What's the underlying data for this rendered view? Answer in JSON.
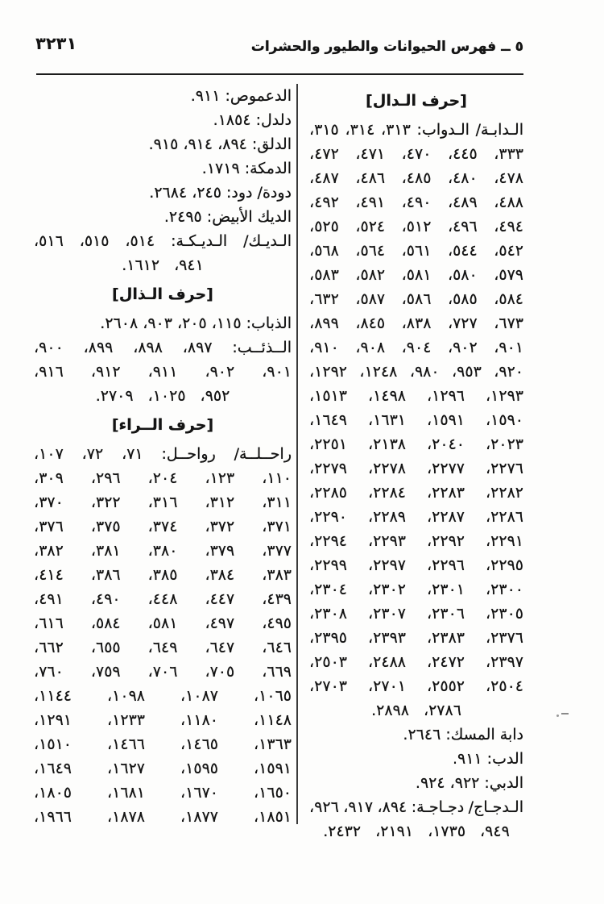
{
  "header": {
    "page_number": "٣٢٣١",
    "title": "٥ ــ فهرس الحيوانات والطيور والحشرات"
  },
  "columns": {
    "right": {
      "section": "حرف الدال",
      "lines": [
        {
          "type": "heading",
          "text": "[حرف الـدال]"
        },
        {
          "type": "justify",
          "tokens": [
            "الـدابـة/",
            "الـدواب:",
            "٣١٣،",
            "٣١٤،",
            "٣١٥،"
          ]
        },
        {
          "type": "justify",
          "tokens": [
            "٣٣٣،",
            "٤٤٥،",
            "٤٧٠،",
            "٤٧١،",
            "٤٧٢،"
          ]
        },
        {
          "type": "justify",
          "tokens": [
            "٤٧٨،",
            "٤٨٠،",
            "٤٨٥،",
            "٤٨٦،",
            "٤٨٧،"
          ]
        },
        {
          "type": "justify",
          "tokens": [
            "٤٨٨،",
            "٤٨٩،",
            "٤٩٠،",
            "٤٩١،",
            "٤٩٢،"
          ]
        },
        {
          "type": "justify",
          "tokens": [
            "٤٩٤،",
            "٤٩٦،",
            "٥١٢،",
            "٥٢٤،",
            "٥٢٥،"
          ]
        },
        {
          "type": "justify",
          "tokens": [
            "٥٤٢،",
            "٥٤٤،",
            "٥٦١،",
            "٥٦٤،",
            "٥٦٨،"
          ]
        },
        {
          "type": "justify",
          "tokens": [
            "٥٧٩،",
            "٥٨٠،",
            "٥٨١،",
            "٥٨٢،",
            "٥٨٣،"
          ]
        },
        {
          "type": "justify",
          "tokens": [
            "٥٨٤،",
            "٥٨٥،",
            "٥٨٦،",
            "٥٨٧،",
            "٦٣٢،"
          ]
        },
        {
          "type": "justify",
          "tokens": [
            "٦٧٣،",
            "٧٢٧،",
            "٨٣٨،",
            "٨٤٥،",
            "٨٩٩،"
          ]
        },
        {
          "type": "justify",
          "tokens": [
            "٩٠١،",
            "٩٠٢،",
            "٩٠٤،",
            "٩٠٨،",
            "٩١٠،"
          ]
        },
        {
          "type": "justify",
          "tokens": [
            "٩٢٠،",
            "٩٥٣،",
            "٩٨٠،",
            "١٢٤٨،",
            "١٢٩٢،"
          ]
        },
        {
          "type": "justify",
          "tokens": [
            "١٢٩٣،",
            "١٢٩٦،",
            "١٤٩٨،",
            "١٥١٣،"
          ]
        },
        {
          "type": "justify",
          "tokens": [
            "١٥٩٠،",
            "١٥٩١،",
            "١٦٣١،",
            "١٦٤٩،"
          ]
        },
        {
          "type": "justify",
          "tokens": [
            "٢٠٢٣،",
            "٢٠٤٠،",
            "٢١٣٨،",
            "٢٢٥١،"
          ]
        },
        {
          "type": "justify",
          "tokens": [
            "٢٢٧٦،",
            "٢٢٧٧،",
            "٢٢٧٨،",
            "٢٢٧٩،"
          ]
        },
        {
          "type": "justify",
          "tokens": [
            "٢٢٨٢،",
            "٢٢٨٣،",
            "٢٢٨٤،",
            "٢٢٨٥،"
          ]
        },
        {
          "type": "justify",
          "tokens": [
            "٢٢٨٦،",
            "٢٢٨٧،",
            "٢٢٨٩،",
            "٢٢٩٠،"
          ]
        },
        {
          "type": "justify",
          "tokens": [
            "٢٢٩١،",
            "٢٢٩٢،",
            "٢٢٩٣،",
            "٢٢٩٤،"
          ]
        },
        {
          "type": "justify",
          "tokens": [
            "٢٢٩٥،",
            "٢٢٩٦،",
            "٢٢٩٧،",
            "٢٢٩٩،"
          ]
        },
        {
          "type": "justify",
          "tokens": [
            "٢٣٠٠،",
            "٢٣٠١،",
            "٢٣٠٢،",
            "٢٣٠٤،"
          ]
        },
        {
          "type": "justify",
          "tokens": [
            "٢٣٠٥،",
            "٢٣٠٦،",
            "٢٣٠٧،",
            "٢٣٠٨،"
          ]
        },
        {
          "type": "justify",
          "tokens": [
            "٢٣٧٦،",
            "٢٣٨٣،",
            "٢٣٩٣،",
            "٢٣٩٥،"
          ]
        },
        {
          "type": "justify",
          "tokens": [
            "٢٣٩٧،",
            "٢٤٧٢،",
            "٢٤٨٨،",
            "٢٥٠٣،"
          ]
        },
        {
          "type": "justify",
          "tokens": [
            "٢٥٠٤،",
            "٢٥٥٢،",
            "٢٧٠١،",
            "٢٧٠٣،"
          ]
        },
        {
          "type": "center",
          "tokens": [
            "٢٧٨٦،",
            "٢٨٩٨."
          ]
        },
        {
          "type": "entry",
          "text": "دابة المسك: ٢٦٤٦."
        },
        {
          "type": "entry",
          "text": "الدب: ٩١١."
        },
        {
          "type": "entry",
          "text": "الدبي: ٩٢٢، ٩٢٤."
        },
        {
          "type": "justify",
          "tokens": [
            "الـدجـاج/",
            "دجـاجـة:",
            "٨٩٤،",
            "٩١٧،",
            "٩٢٦،"
          ]
        },
        {
          "type": "center",
          "tokens": [
            "٩٤٩،",
            "١٧٣٥،",
            "٢١٩١،",
            "٢٤٣٢."
          ]
        }
      ]
    },
    "left": {
      "sections": [
        "حرف الذال",
        "حرف الراء"
      ],
      "lines": [
        {
          "type": "entry",
          "text": "الدعموص: ٩١١."
        },
        {
          "type": "entry",
          "text": "دلدل: ١٨٥٤."
        },
        {
          "type": "entry",
          "text": "الدلق: ٨٩٤، ٩١٤، ٩١٥."
        },
        {
          "type": "entry",
          "text": "الدمكة: ١٧١٩."
        },
        {
          "type": "entry",
          "text": "دودة/ دود: ٢٤٥، ٢٦٨٤."
        },
        {
          "type": "entry",
          "text": "الديك الأبيض: ٢٤٩٥."
        },
        {
          "type": "justify",
          "tokens": [
            "الـديـك/",
            "الـديـكـة:",
            "٥١٤،",
            "٥١٥،",
            "٥١٦،"
          ]
        },
        {
          "type": "center",
          "tokens": [
            "٩٤١،",
            "١٦١٢."
          ]
        },
        {
          "type": "heading",
          "text": "[حرف الـذال]"
        },
        {
          "type": "entry",
          "text": "الذباب: ١١٥، ٢٠٥، ٩٠٣، ٢٦٠٨."
        },
        {
          "type": "justify",
          "tokens": [
            "الــذئــب:",
            "٨٩٧،",
            "٨٩٨،",
            "٨٩٩،",
            "٩٠٠،"
          ]
        },
        {
          "type": "justify",
          "tokens": [
            "٩٠١،",
            "٩٠٢،",
            "٩١١،",
            "٩١٢،",
            "٩١٦،"
          ]
        },
        {
          "type": "center",
          "tokens": [
            "٩٥٢،",
            "١٠٢٥،",
            "٢٧٠٩."
          ]
        },
        {
          "type": "heading",
          "text": "[حرف الــراء]"
        },
        {
          "type": "justify",
          "tokens": [
            "راحــلــة/",
            "رواحــل:",
            "٧١،",
            "٧٢،",
            "١٠٧،"
          ]
        },
        {
          "type": "justify",
          "tokens": [
            "١١٠،",
            "١٢٣،",
            "٢٠٤،",
            "٢٩٦،",
            "٣٠٩،"
          ]
        },
        {
          "type": "justify",
          "tokens": [
            "٣١١،",
            "٣١٢،",
            "٣١٦،",
            "٣٢٢،",
            "٣٧٠،"
          ]
        },
        {
          "type": "justify",
          "tokens": [
            "٣٧١،",
            "٣٧٢،",
            "٣٧٤،",
            "٣٧٥،",
            "٣٧٦،"
          ]
        },
        {
          "type": "justify",
          "tokens": [
            "٣٧٧،",
            "٣٧٩،",
            "٣٨٠،",
            "٣٨١،",
            "٣٨٢،"
          ]
        },
        {
          "type": "justify",
          "tokens": [
            "٣٨٣،",
            "٣٨٤،",
            "٣٨٥،",
            "٣٨٦،",
            "٤١٤،"
          ]
        },
        {
          "type": "justify",
          "tokens": [
            "٤٣٩،",
            "٤٤٧،",
            "٤٤٨،",
            "٤٩٠،",
            "٤٩١،"
          ]
        },
        {
          "type": "justify",
          "tokens": [
            "٤٩٥،",
            "٤٩٧،",
            "٥٨١،",
            "٥٨٤،",
            "٦١٦،"
          ]
        },
        {
          "type": "justify",
          "tokens": [
            "٦٤٦،",
            "٦٤٧،",
            "٦٤٩،",
            "٦٥٥،",
            "٦٦٢،"
          ]
        },
        {
          "type": "justify",
          "tokens": [
            "٦٦٩،",
            "٧٠٥،",
            "٧٠٦،",
            "٧٥٩،",
            "٧٦٠،"
          ]
        },
        {
          "type": "justify",
          "tokens": [
            "١٠٦٥،",
            "١٠٨٧،",
            "١٠٩٨،",
            "١١٤٤،"
          ]
        },
        {
          "type": "justify",
          "tokens": [
            "١١٤٨،",
            "١١٨٠،",
            "١٢٣٣،",
            "١٢٩١،"
          ]
        },
        {
          "type": "justify",
          "tokens": [
            "١٣٦٣،",
            "١٤٦٥،",
            "١٤٦٦،",
            "١٥١٠،"
          ]
        },
        {
          "type": "justify",
          "tokens": [
            "١٥٩١،",
            "١٥٩٥،",
            "١٦٢٧،",
            "١٦٤٩،"
          ]
        },
        {
          "type": "justify",
          "tokens": [
            "١٦٥٠،",
            "١٦٧٠،",
            "١٦٨١،",
            "١٨٠٥،"
          ]
        },
        {
          "type": "justify",
          "tokens": [
            "١٨٥١،",
            "١٨٧٧،",
            "١٨٧٨،",
            "١٩٦٦،"
          ]
        }
      ]
    }
  }
}
